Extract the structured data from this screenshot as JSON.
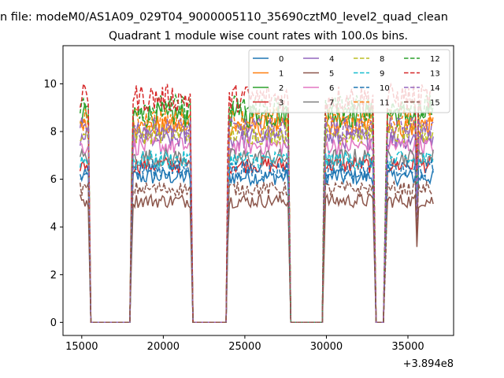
{
  "figure": {
    "suptitle": "n file: modeM0/AS1A09_029T04_9000005110_35690cztM0_level2_quad_clean",
    "title": "Quadrant 1 module wise count rates with 100.0s bins.",
    "offset_label": "+3.894e8"
  },
  "chart_data": {
    "type": "line",
    "title": "Quadrant 1 module wise count rates with 100.0s bins.",
    "xlabel": "",
    "ylabel": "",
    "x_offset": 389400000,
    "xlim": [
      13850,
      37800
    ],
    "ylim": [
      -0.55,
      11.6
    ],
    "x_ticks": [
      15000,
      20000,
      25000,
      30000,
      35000
    ],
    "x_tick_labels": [
      "15000",
      "20000",
      "25000",
      "30000",
      "35000"
    ],
    "y_ticks": [
      0,
      2,
      4,
      6,
      8,
      10
    ],
    "y_tick_labels": [
      "0",
      "2",
      "4",
      "6",
      "8",
      "10"
    ],
    "grid": false,
    "legend": {
      "placement": "top-right",
      "columns": 4
    },
    "segments": [
      {
        "start": 14900,
        "end": 15450,
        "drop_to": 15560
      },
      {
        "start": 18000,
        "end": 21750,
        "drop_to": 21860
      },
      {
        "start": 23950,
        "end": 27750,
        "drop_to": 27860
      },
      {
        "start": 29850,
        "end": 32900,
        "drop_to": 33000
      },
      {
        "start": 33600,
        "end": 35900,
        "drop_to": 35870
      },
      {
        "start": 35500,
        "end": 36600,
        "drop_to": 36600
      }
    ],
    "quiet_level": 0,
    "series": [
      {
        "name": "0",
        "base": 6.1,
        "spread": 0.35,
        "style": "solid",
        "color": "#1f77b4"
      },
      {
        "name": "1",
        "base": 8.2,
        "spread": 0.45,
        "style": "solid",
        "color": "#ff7f0e"
      },
      {
        "name": "2",
        "base": 8.7,
        "spread": 0.55,
        "style": "solid",
        "color": "#2ca02c"
      },
      {
        "name": "3",
        "base": 6.6,
        "spread": 0.35,
        "style": "solid",
        "color": "#d62728"
      },
      {
        "name": "4",
        "base": 7.7,
        "spread": 0.45,
        "style": "solid",
        "color": "#9467bd"
      },
      {
        "name": "5",
        "base": 5.1,
        "spread": 0.3,
        "style": "solid",
        "color": "#8c564b"
      },
      {
        "name": "6",
        "base": 7.4,
        "spread": 0.4,
        "style": "solid",
        "color": "#e377c2"
      },
      {
        "name": "7",
        "base": 6.9,
        "spread": 0.4,
        "style": "solid",
        "color": "#7f7f7f"
      },
      {
        "name": "8",
        "base": 7.9,
        "spread": 0.45,
        "style": "dashed",
        "color": "#bcbd22"
      },
      {
        "name": "9",
        "base": 6.8,
        "spread": 0.4,
        "style": "dashed",
        "color": "#17becf"
      },
      {
        "name": "10",
        "base": 6.4,
        "spread": 0.4,
        "style": "dashed",
        "color": "#1f77b4"
      },
      {
        "name": "11",
        "base": 8.5,
        "spread": 0.5,
        "style": "dashed",
        "color": "#ff7f0e"
      },
      {
        "name": "12",
        "base": 9.0,
        "spread": 0.55,
        "style": "dashed",
        "color": "#2ca02c"
      },
      {
        "name": "13",
        "base": 9.4,
        "spread": 0.6,
        "style": "dashed",
        "color": "#d62728"
      },
      {
        "name": "14",
        "base": 8.1,
        "spread": 0.5,
        "style": "dashed",
        "color": "#9467bd"
      },
      {
        "name": "15",
        "base": 5.6,
        "spread": 0.3,
        "style": "dashed",
        "color": "#8c564b"
      }
    ]
  }
}
